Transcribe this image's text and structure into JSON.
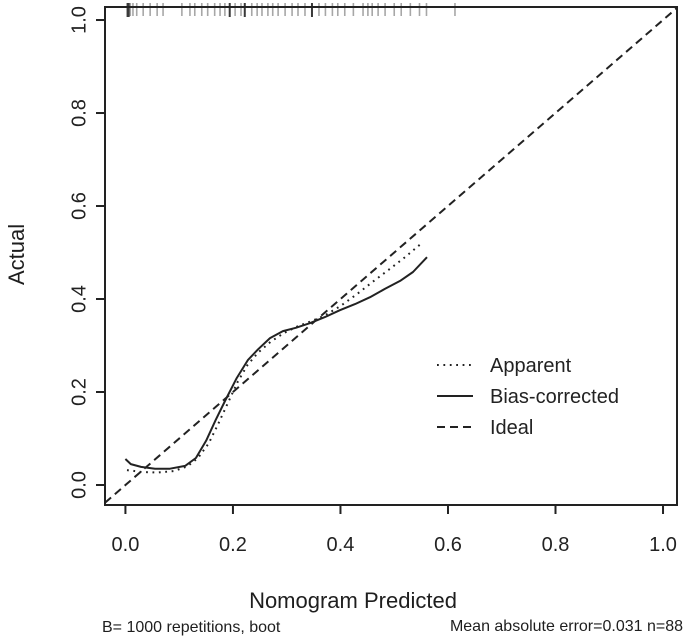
{
  "figure": {
    "xlabel": "Nomogram Predicted",
    "ylabel": "Actual",
    "footnote_left": "B= 1000 repetitions, boot",
    "footnote_right": "Mean absolute error=0.031 n=88"
  },
  "colors": {
    "foreground": "#222222",
    "rug_normal": "#8a8a8a",
    "rug_dark": "#3a3a3a",
    "background": "#ffffff"
  },
  "chart_data": {
    "type": "line",
    "title": "",
    "xlabel": "Nomogram Predicted",
    "ylabel": "Actual",
    "xlim": [
      -0.038,
      1.026
    ],
    "ylim": [
      -0.043,
      1.028
    ],
    "x_ticks": [
      0.0,
      0.2,
      0.4,
      0.6,
      0.8,
      1.0
    ],
    "y_ticks": [
      0.0,
      0.2,
      0.4,
      0.6,
      0.8,
      1.0
    ],
    "x_tick_labels": [
      "0.0",
      "0.2",
      "0.4",
      "0.6",
      "0.8",
      "1.0"
    ],
    "y_tick_labels": [
      "0.0",
      "0.2",
      "0.4",
      "0.6",
      "0.8",
      "1.0"
    ],
    "grid": false,
    "box": true,
    "legend_position": "inside-right-middle",
    "series": [
      {
        "name": "Apparent",
        "style": "dotted",
        "points": [
          [
            0.003,
            0.032
          ],
          [
            0.03,
            0.028
          ],
          [
            0.06,
            0.027
          ],
          [
            0.09,
            0.03
          ],
          [
            0.115,
            0.04
          ],
          [
            0.135,
            0.058
          ],
          [
            0.155,
            0.09
          ],
          [
            0.172,
            0.13
          ],
          [
            0.19,
            0.175
          ],
          [
            0.208,
            0.22
          ],
          [
            0.227,
            0.258
          ],
          [
            0.247,
            0.285
          ],
          [
            0.27,
            0.308
          ],
          [
            0.295,
            0.327
          ],
          [
            0.32,
            0.341
          ],
          [
            0.345,
            0.352
          ],
          [
            0.37,
            0.364
          ],
          [
            0.4,
            0.385
          ],
          [
            0.43,
            0.41
          ],
          [
            0.46,
            0.437
          ],
          [
            0.49,
            0.463
          ],
          [
            0.52,
            0.49
          ],
          [
            0.548,
            0.517
          ]
        ]
      },
      {
        "name": "Bias-corrected",
        "style": "solid",
        "points": [
          [
            0.0,
            0.056
          ],
          [
            0.01,
            0.045
          ],
          [
            0.029,
            0.039
          ],
          [
            0.055,
            0.035
          ],
          [
            0.083,
            0.035
          ],
          [
            0.111,
            0.041
          ],
          [
            0.131,
            0.058
          ],
          [
            0.15,
            0.095
          ],
          [
            0.168,
            0.14
          ],
          [
            0.187,
            0.185
          ],
          [
            0.207,
            0.23
          ],
          [
            0.228,
            0.269
          ],
          [
            0.247,
            0.292
          ],
          [
            0.269,
            0.316
          ],
          [
            0.293,
            0.331
          ],
          [
            0.317,
            0.338
          ],
          [
            0.343,
            0.348
          ],
          [
            0.371,
            0.361
          ],
          [
            0.399,
            0.376
          ],
          [
            0.427,
            0.389
          ],
          [
            0.455,
            0.404
          ],
          [
            0.483,
            0.422
          ],
          [
            0.511,
            0.439
          ],
          [
            0.535,
            0.458
          ],
          [
            0.561,
            0.49
          ]
        ]
      },
      {
        "name": "Ideal",
        "style": "dashed",
        "points": [
          [
            -0.038,
            -0.038
          ],
          [
            1.026,
            1.026
          ]
        ]
      }
    ],
    "rug_x": [
      0.004,
      0.009,
      0.014,
      0.021,
      0.033,
      0.046,
      0.059,
      0.07,
      0.105,
      0.12,
      0.129,
      0.142,
      0.153,
      0.166,
      0.176,
      0.185,
      0.194,
      0.204,
      0.215,
      0.222,
      0.235,
      0.245,
      0.254,
      0.265,
      0.274,
      0.284,
      0.297,
      0.31,
      0.321,
      0.334,
      0.347,
      0.36,
      0.372,
      0.385,
      0.395,
      0.408,
      0.424,
      0.442,
      0.451,
      0.459,
      0.47,
      0.483,
      0.5,
      0.513,
      0.53,
      0.547,
      0.56,
      0.613
    ],
    "rug_x_dark": [
      0.004,
      0.006,
      0.194,
      0.222,
      0.347
    ],
    "annotations": {
      "bottom_left": "B= 1000 repetitions, boot",
      "bottom_right": "Mean absolute error=0.031 n=88"
    }
  }
}
